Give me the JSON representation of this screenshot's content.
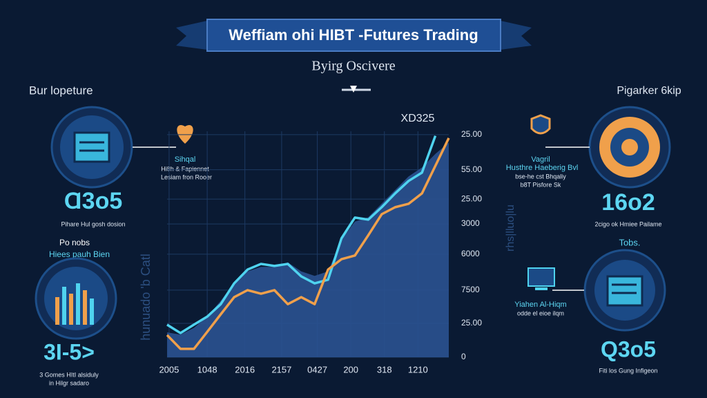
{
  "header": {
    "title": "Weffiam ohi HIBT -Futures Trading",
    "subtitle": "Byirg Oscivere"
  },
  "left": {
    "heading": "Bur lopeture",
    "stat": "Ɑ3o5",
    "caption": "Pihare Hul gosh dosion",
    "section_title": "Po nobs",
    "section_subtitle": "Hiees pauh Bien",
    "stat2": "3I-5>",
    "caption2": [
      "3 Gomes HItI alsiduly",
      "in Hilgr sadaro"
    ]
  },
  "right": {
    "heading": "Pigarker 6kip",
    "stat": "16o2",
    "caption": "2cigo ok Hmiee Pailame",
    "section_title": "Tobs.",
    "stat2": "Q3o5",
    "caption2": "Fiti los Gung Infigeon"
  },
  "annotations": {
    "signal": [
      "Sihqal",
      "Hi8h & Fapiennet",
      "Lesiam fron Rooer"
    ],
    "right_top": [
      "Vagril",
      "Husthre Haeberig Bvl",
      "bse-he cst Bhqaliy",
      "b8T Pisfore Sk"
    ],
    "right_mid": [
      "Yiahen Al-Hiqm",
      "odde el eioe ilqm"
    ]
  },
  "chart_data": {
    "type": "line",
    "label": "XD325",
    "side_labels": [
      "hunuado 'b Catl",
      "rhs|lluo|lu"
    ],
    "x": [
      0,
      1,
      2,
      3,
      4,
      5,
      6,
      7,
      8,
      9,
      10,
      11,
      12,
      13,
      14,
      15,
      16,
      17,
      18,
      19,
      20,
      21
    ],
    "xlim": [
      0,
      21
    ],
    "ylim": [
      0,
      100
    ],
    "grid": true,
    "xticks": [
      {
        "value": 0.15,
        "label": "2005"
      },
      {
        "value": 2.99,
        "label": "1048"
      },
      {
        "value": 5.8,
        "label": "2016"
      },
      {
        "value": 8.54,
        "label": "2157"
      },
      {
        "value": 11.2,
        "label": "0427"
      },
      {
        "value": 13.7,
        "label": "200"
      },
      {
        "value": 16.2,
        "label": "318"
      },
      {
        "value": 18.7,
        "label": "1210"
      }
    ],
    "yticks": [
      {
        "value": 98.5,
        "label": "25.00"
      },
      {
        "value": 83,
        "label": "55.00"
      },
      {
        "value": 70,
        "label": "25.00"
      },
      {
        "value": 59,
        "label": "3000"
      },
      {
        "value": 45.6,
        "label": "6000"
      },
      {
        "value": 29.7,
        "label": "7500"
      },
      {
        "value": 15,
        "label": "25.00"
      },
      0
    ],
    "series": [
      {
        "color": "#2a5290",
        "area": true,
        "values": [
          11,
          10,
          13,
          18,
          25,
          33,
          38,
          40,
          40,
          42,
          38,
          36,
          38,
          52,
          60,
          62,
          68,
          74,
          80,
          84,
          90,
          95
        ]
      },
      {
        "color": "#4fd3ef",
        "values": [
          14.4,
          10.7,
          14.4,
          18,
          23.5,
          32.7,
          38.8,
          41.3,
          40.4,
          41.3,
          35.8,
          32.7,
          34.3,
          52.6,
          61.8,
          60.9,
          66.4,
          72.5,
          78,
          81.7,
          98,
          null
        ]
      },
      {
        "color": "#f0a04b",
        "values": [
          9.8,
          3.7,
          3.7,
          11.3,
          19,
          26.6,
          29.7,
          28.1,
          29.7,
          23.5,
          26.6,
          23.5,
          38.8,
          43.4,
          45,
          54,
          63.3,
          66.4,
          67.9,
          72.5,
          84.7,
          97
        ]
      }
    ]
  }
}
